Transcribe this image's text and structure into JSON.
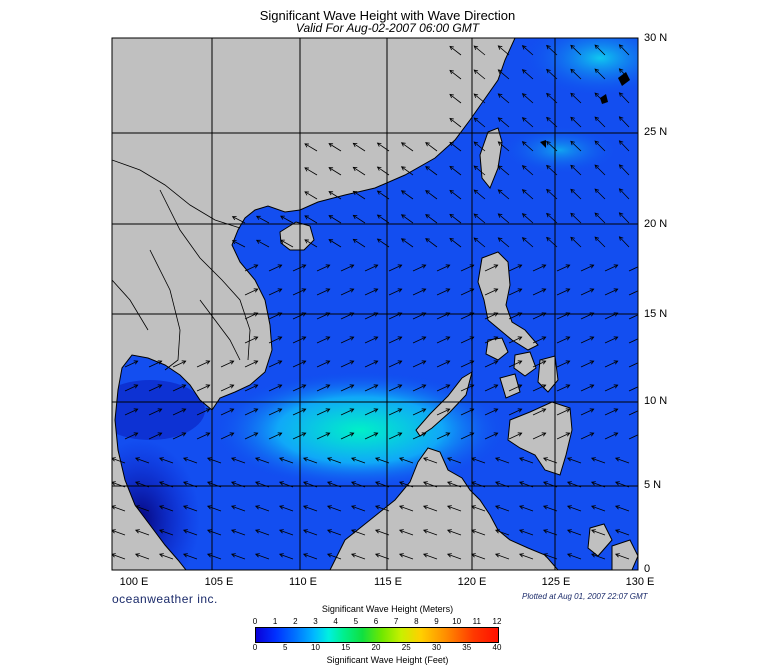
{
  "title": "Significant Wave Height with Wave Direction",
  "subtitle": "Valid For Aug-02-2007 06:00 GMT",
  "lon_labels": [
    "100 E",
    "105 E",
    "110 E",
    "115 E",
    "120 E",
    "125 E",
    "130 E"
  ],
  "lat_labels": [
    "30 N",
    "25 N",
    "20 N",
    "15 N",
    "10 N",
    "5 N",
    "0"
  ],
  "brand": "oceanweather inc.",
  "plotted": "Plotted at Aug 01, 2007 22:07 GMT",
  "legend": {
    "meters_title": "Significant Wave Height (Meters)",
    "feet_title": "Significant Wave Height (Feet)",
    "meters_ticks": [
      "0",
      "1",
      "2",
      "3",
      "4",
      "5",
      "6",
      "7",
      "8",
      "9",
      "10",
      "11",
      "12"
    ],
    "feet_ticks": [
      "0",
      "5",
      "10",
      "15",
      "20",
      "25",
      "30",
      "35",
      "40"
    ]
  },
  "colors": {
    "land": "#c0c0c0",
    "deep_sea": "#0a14c8",
    "sea": "#1048f0",
    "swell": "#00e8c0"
  }
}
